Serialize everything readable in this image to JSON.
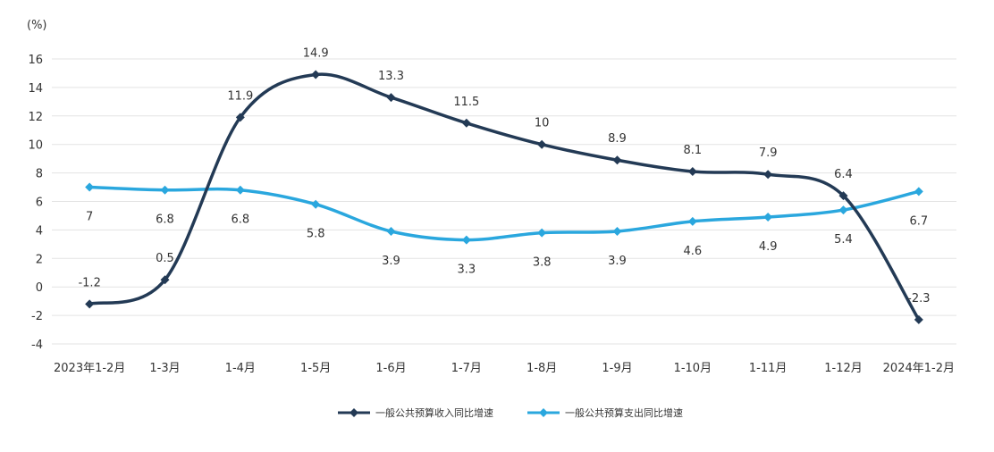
{
  "chart_data": {
    "type": "line",
    "y_unit": "(%)",
    "categories": [
      "2023年1-2月",
      "1-3月",
      "1-4月",
      "1-5月",
      "1-6月",
      "1-7月",
      "1-8月",
      "1-9月",
      "1-10月",
      "1-11月",
      "1-12月",
      "2024年1-2月"
    ],
    "ylim": [
      -4,
      16
    ],
    "y_ticks": [
      -4,
      -2,
      0,
      2,
      4,
      6,
      8,
      10,
      12,
      14,
      16
    ],
    "grid": "horizontal",
    "legend_position": "bottom-center",
    "series": [
      {
        "name": "一般公共预算收入同比增速",
        "color": "#233a55",
        "values": [
          -1.2,
          0.5,
          11.9,
          14.9,
          13.3,
          11.5,
          10,
          8.9,
          8.1,
          7.9,
          6.4,
          -2.3
        ],
        "label_position": "above"
      },
      {
        "name": "一般公共预算支出同比增速",
        "color": "#2aa7de",
        "values": [
          7,
          6.8,
          6.8,
          5.8,
          3.9,
          3.3,
          3.8,
          3.9,
          4.6,
          4.9,
          5.4,
          6.7
        ],
        "label_position": "below"
      }
    ]
  }
}
